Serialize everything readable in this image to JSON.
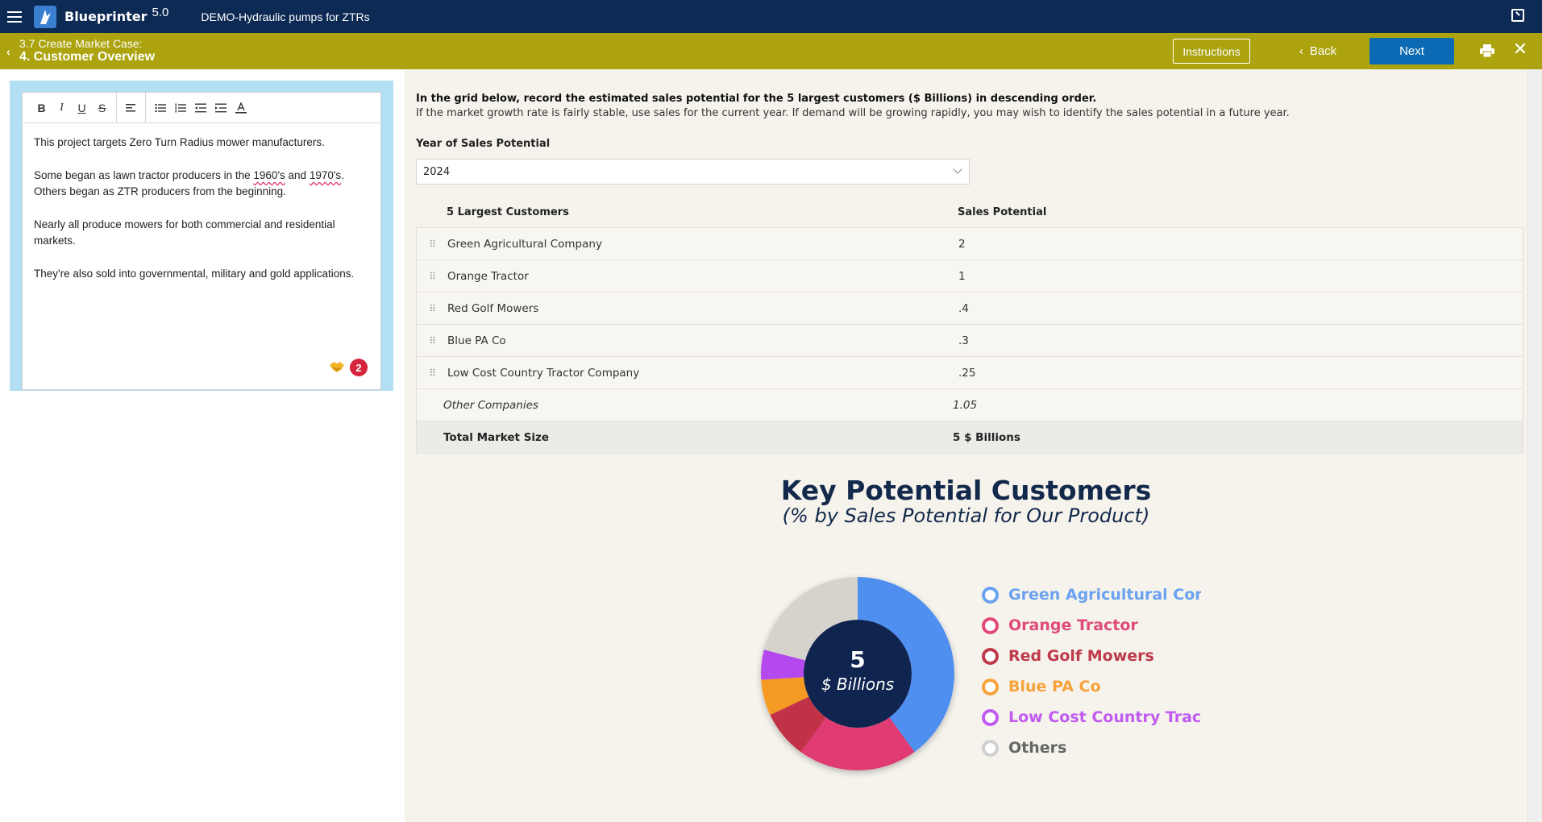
{
  "app": {
    "name": "Blueprinter",
    "version": "5.0",
    "project": "DEMO-Hydraulic pumps for ZTRs"
  },
  "step": {
    "section": "3.7 Create Market Case:",
    "title": "4. Customer Overview",
    "instructions_label": "Instructions",
    "back_label": "Back",
    "next_label": "Next"
  },
  "notes": {
    "p1": "This project targets Zero Turn Radius mower manufacturers.",
    "p2a": "Some began as lawn tractor producers in the ",
    "p2b": "1960's",
    "p2c": " and ",
    "p2d": "1970's",
    "p2e": ".",
    "p2f": "Others began as ZTR producers from the beginning.",
    "p3": "Nearly all produce mowers for both commercial and residential markets.",
    "p4": "They're also sold into governmental, military and gold applications.",
    "comment_count": "2"
  },
  "instructions": {
    "line1": "In the grid below, record the estimated sales potential for the 5 largest customers ($ Billions) in descending order.",
    "line2": "If the market growth rate is fairly stable, use sales for the current year. If demand will be growing rapidly, you may wish to identify the sales potential in a future year."
  },
  "year": {
    "label": "Year of Sales Potential",
    "value": "2024"
  },
  "grid": {
    "col1": "5 Largest Customers",
    "col2": "Sales Potential",
    "rows": [
      {
        "name": "Green Agricultural Company",
        "value": "2"
      },
      {
        "name": "Orange Tractor",
        "value": "1"
      },
      {
        "name": "Red Golf Mowers",
        "value": ".4"
      },
      {
        "name": "Blue PA Co",
        "value": ".3"
      },
      {
        "name": "Low Cost Country Tractor Company",
        "value": ".25"
      }
    ],
    "other_label": "Other Companies",
    "other_value": "1.05",
    "total_label": "Total Market Size",
    "total_value": "5 $ Billions"
  },
  "chart": {
    "title": "Key Potential Customers",
    "subtitle": "(% by Sales Potential for Our Product)",
    "center_value": "5",
    "center_unit": "$ Billions"
  },
  "chart_data": {
    "type": "pie",
    "categories": [
      "Green Agricultural Comp",
      "Orange Tractor",
      "Red Golf Mowers",
      "Blue PA Co",
      "Low Cost Country Tractor",
      "Others"
    ],
    "values": [
      2,
      1,
      0.4,
      0.3,
      0.25,
      1.05
    ],
    "colors": [
      "#4f8ff0",
      "#e03b72",
      "#c23247",
      "#f59a23",
      "#b54af0",
      "#d6d3cd"
    ],
    "legend_colors": [
      "#6aa2f0",
      "#e04a78",
      "#bf3a4b",
      "#f7a23a",
      "#c05af0",
      "#cfcfcf"
    ],
    "legend_text_colors": [
      "#6aa2f0",
      "#e04a78",
      "#bf3a4b",
      "#f7a23a",
      "#c05af0",
      "#666666"
    ]
  }
}
